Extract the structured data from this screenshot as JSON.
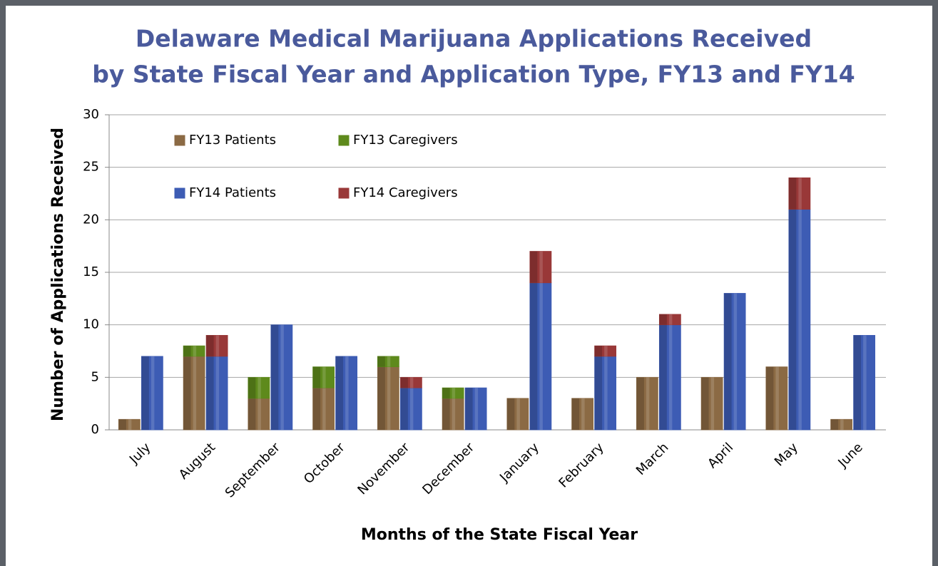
{
  "chart_data": {
    "type": "grouped-stacked-bar",
    "title": [
      "Delaware Medical Marijuana Applications Received",
      "by State Fiscal Year and Application Type, FY13 and FY14"
    ],
    "x_label": "Months of the State Fiscal Year",
    "y_label": "Number of Applications Received",
    "categories": [
      "July",
      "August",
      "September",
      "October",
      "November",
      "December",
      "January",
      "February",
      "March",
      "April",
      "May",
      "June"
    ],
    "series": [
      {
        "name": "FY13 Patients",
        "color": "#8b6a44",
        "values": [
          1,
          7,
          3,
          4,
          6,
          3,
          3,
          3,
          5,
          5,
          6,
          1
        ]
      },
      {
        "name": "FY13 Caregivers",
        "color": "#5e8a1c",
        "values": [
          0,
          1,
          2,
          2,
          1,
          1,
          0,
          0,
          0,
          0,
          0,
          0
        ]
      },
      {
        "name": "FY14 Patients",
        "color": "#3d5cb4",
        "values": [
          7,
          7,
          10,
          7,
          4,
          4,
          14,
          7,
          10,
          13,
          21,
          9
        ]
      },
      {
        "name": "FY14 Caregivers",
        "color": "#993838",
        "values": [
          0,
          2,
          0,
          0,
          1,
          0,
          3,
          1,
          1,
          0,
          3,
          0
        ]
      }
    ],
    "ylim": [
      0,
      30
    ],
    "yticks": [
      0,
      5,
      10,
      15,
      20,
      25,
      30
    ],
    "grid": true,
    "legend": "upper left"
  }
}
